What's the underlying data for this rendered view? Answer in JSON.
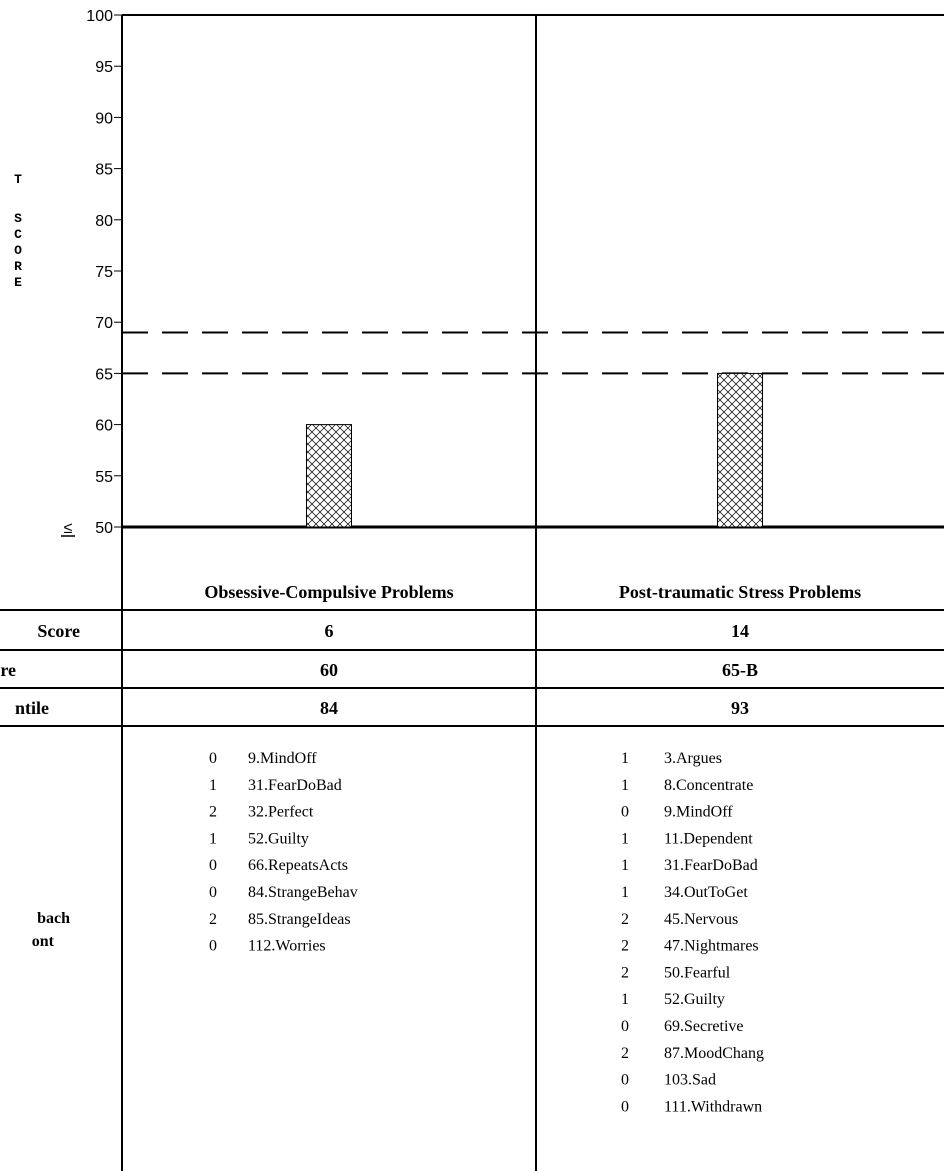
{
  "chart_data": {
    "type": "bar",
    "ylabel_chars": [
      "T",
      "",
      "S",
      "C",
      "O",
      "R",
      "E"
    ],
    "y_ticks": [
      100,
      95,
      90,
      85,
      80,
      75,
      70,
      65,
      60,
      55,
      50
    ],
    "y_min_marker": "≤",
    "ylim": [
      50,
      100
    ],
    "reference_lines": [
      69,
      65
    ],
    "categories": [
      "Obsessive-Compulsive Problems",
      "Post-traumatic Stress Problems"
    ],
    "values": [
      60,
      65
    ]
  },
  "table": {
    "row_labels": [
      "Score",
      "re",
      "ntile",
      "bach",
      "ont"
    ],
    "rows": [
      [
        "6",
        "14"
      ],
      [
        "60",
        "65-B"
      ],
      [
        "84",
        "93"
      ]
    ],
    "items": [
      [
        {
          "score": "0",
          "item": "9.MindOff"
        },
        {
          "score": "1",
          "item": "31.FearDoBad"
        },
        {
          "score": "2",
          "item": "32.Perfect"
        },
        {
          "score": "1",
          "item": "52.Guilty"
        },
        {
          "score": "0",
          "item": "66.RepeatsActs"
        },
        {
          "score": "0",
          "item": "84.StrangeBehav"
        },
        {
          "score": "2",
          "item": "85.StrangeIdeas"
        },
        {
          "score": "0",
          "item": "112.Worries"
        }
      ],
      [
        {
          "score": "1",
          "item": "3.Argues"
        },
        {
          "score": "1",
          "item": "8.Concentrate"
        },
        {
          "score": "0",
          "item": "9.MindOff"
        },
        {
          "score": "1",
          "item": "11.Dependent"
        },
        {
          "score": "1",
          "item": "31.FearDoBad"
        },
        {
          "score": "1",
          "item": "34.OutToGet"
        },
        {
          "score": "2",
          "item": "45.Nervous"
        },
        {
          "score": "2",
          "item": "47.Nightmares"
        },
        {
          "score": "2",
          "item": "50.Fearful"
        },
        {
          "score": "1",
          "item": "52.Guilty"
        },
        {
          "score": "0",
          "item": "69.Secretive"
        },
        {
          "score": "2",
          "item": "87.MoodChang"
        },
        {
          "score": "0",
          "item": "103.Sad"
        },
        {
          "score": "0",
          "item": "111.Withdrawn"
        }
      ]
    ]
  }
}
